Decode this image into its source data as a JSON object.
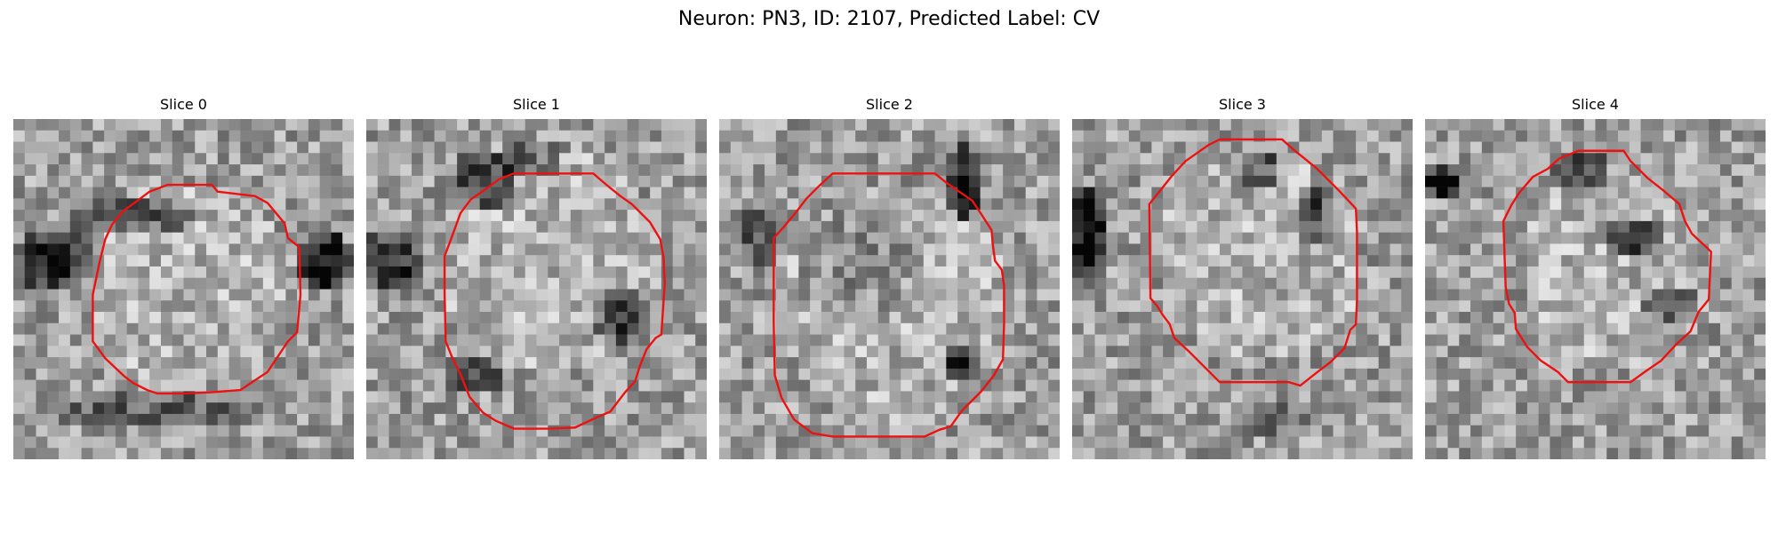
{
  "figure": {
    "title": "Neuron: PN3, ID: 2107, Predicted Label: CV"
  },
  "slices": [
    {
      "title": "Slice 0"
    },
    {
      "title": "Slice 1"
    },
    {
      "title": "Slice 2"
    },
    {
      "title": "Slice 3"
    },
    {
      "title": "Slice 4"
    }
  ],
  "colors": {
    "contour": "#ee1111",
    "colormap": "gray"
  }
}
